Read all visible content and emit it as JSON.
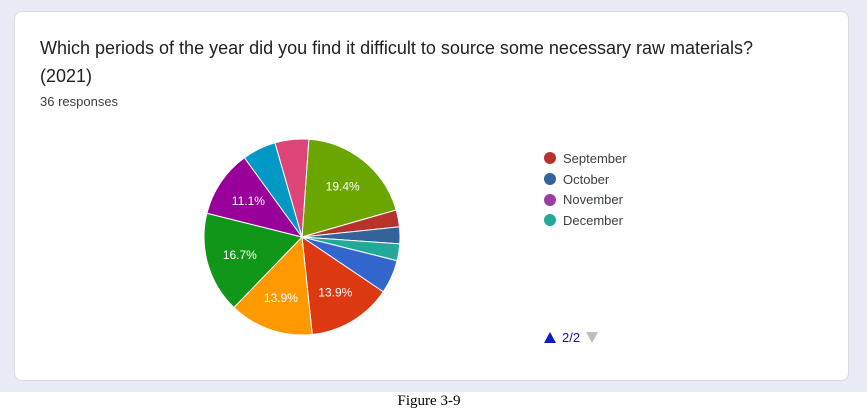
{
  "card": {
    "title": "Which periods of the year did you find it difficult to source some necessary raw materials? (2021)",
    "responses": "36 responses"
  },
  "pager": {
    "text": "2/2"
  },
  "caption": "Figure 3-9",
  "chart_data": {
    "type": "pie",
    "total": 36,
    "slices": [
      {
        "name": "",
        "value": 7,
        "color": "#6aa500",
        "label": "19.4%"
      },
      {
        "name": "September",
        "value": 1,
        "color": "#b8322c",
        "label": ""
      },
      {
        "name": "October",
        "value": 1,
        "color": "#33639a",
        "label": ""
      },
      {
        "name": "November",
        "value": 0,
        "color": "#9b3ea0",
        "label": ""
      },
      {
        "name": "December",
        "value": 1,
        "color": "#23a99a",
        "label": ""
      },
      {
        "name": "",
        "value": 2,
        "color": "#3366cc",
        "label": ""
      },
      {
        "name": "",
        "value": 5,
        "color": "#dc3912",
        "label": "13.9%"
      },
      {
        "name": "",
        "value": 5,
        "color": "#ff9900",
        "label": "13.9%"
      },
      {
        "name": "",
        "value": 6,
        "color": "#109618",
        "label": "16.7%"
      },
      {
        "name": "",
        "value": 4,
        "color": "#990099",
        "label": "11.1%"
      },
      {
        "name": "",
        "value": 2,
        "color": "#0099c6",
        "label": ""
      },
      {
        "name": "",
        "value": 2,
        "color": "#dd4477",
        "label": ""
      }
    ],
    "legend": [
      {
        "name": "September",
        "color": "#b8322c"
      },
      {
        "name": "October",
        "color": "#33639a"
      },
      {
        "name": "November",
        "color": "#9b3ea0"
      },
      {
        "name": "December",
        "color": "#23a99a"
      }
    ],
    "legend_position": "right"
  }
}
